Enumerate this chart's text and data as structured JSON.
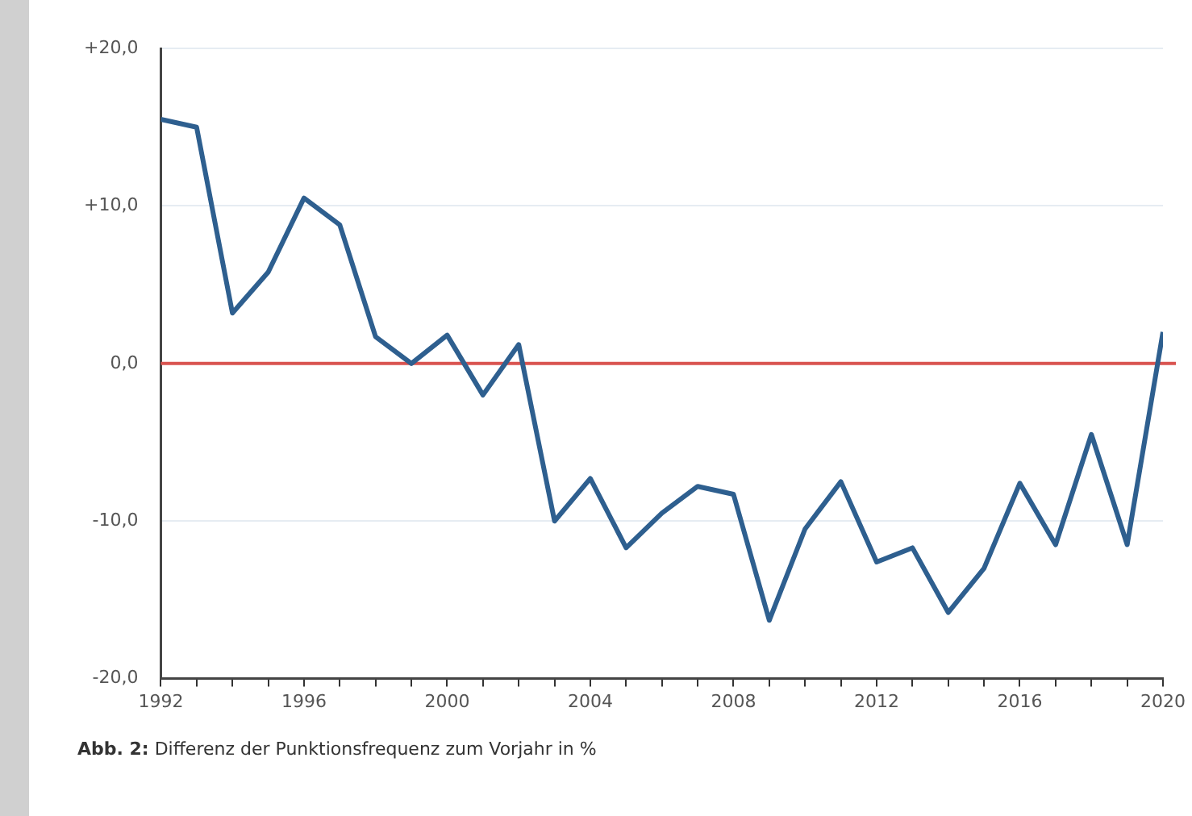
{
  "chart_data": {
    "type": "line",
    "x": [
      1992,
      1993,
      1994,
      1995,
      1996,
      1997,
      1998,
      1999,
      2000,
      2001,
      2002,
      2003,
      2004,
      2005,
      2006,
      2007,
      2008,
      2009,
      2010,
      2011,
      2012,
      2013,
      2014,
      2015,
      2016,
      2017,
      2018,
      2019,
      2020
    ],
    "series": [
      {
        "color": "#2e5f8f",
        "values": [
          15.5,
          15,
          3.2,
          5.8,
          10.5,
          8.8,
          1.7,
          0,
          1.8,
          -2,
          1.2,
          -10,
          -7.3,
          -11.7,
          -9.5,
          -7.8,
          -8.3,
          -16.3,
          -10.5,
          -7.5,
          -12.6,
          -11.7,
          -15.8,
          -13,
          -7.6,
          -11.5,
          -4.5,
          -11.5,
          2
        ]
      }
    ],
    "xlim": [
      1992,
      2020
    ],
    "xticks": [
      1992,
      {
        "value": 1993,
        "label": null
      },
      {
        "value": 1994,
        "label": null
      },
      {
        "value": 1995,
        "label": null
      },
      1996,
      {
        "value": 1997,
        "label": null
      },
      {
        "value": 1998,
        "label": null
      },
      {
        "value": 1999,
        "label": null
      },
      2000,
      {
        "value": 2001,
        "label": null
      },
      {
        "value": 2002,
        "label": null
      },
      {
        "value": 2003,
        "label": null
      },
      2004,
      {
        "value": 2005,
        "label": null
      },
      {
        "value": 2006,
        "label": null
      },
      {
        "value": 2007,
        "label": null
      },
      2008,
      {
        "value": 2009,
        "label": null
      },
      {
        "value": 2010,
        "label": null
      },
      {
        "value": 2011,
        "label": null
      },
      2012,
      {
        "value": 2013,
        "label": null
      },
      {
        "value": 2014,
        "label": null
      },
      {
        "value": 2015,
        "label": null
      },
      2016,
      {
        "value": 2017,
        "label": null
      },
      {
        "value": 2018,
        "label": null
      },
      {
        "value": 2019,
        "label": null
      },
      2020
    ],
    "ylim": [
      -20,
      20
    ],
    "yticks": [
      {
        "value": -20,
        "label": "-20,0"
      },
      {
        "value": -10,
        "label": "-10,0"
      },
      {
        "value": 0,
        "label": "0,0"
      },
      {
        "value": 10,
        "label": "+10,0"
      },
      {
        "value": 20,
        "label": "+20,0"
      }
    ],
    "ref_lines": [
      {
        "axis": "y",
        "value": 0,
        "color": "#d9534f"
      }
    ],
    "grid": "y",
    "legend": false,
    "marker": "none",
    "line_style": "solid",
    "annotations": [
      "Abb. 2: Differenz der Punktionsfrequenz zum Vorjahr in %"
    ]
  }
}
